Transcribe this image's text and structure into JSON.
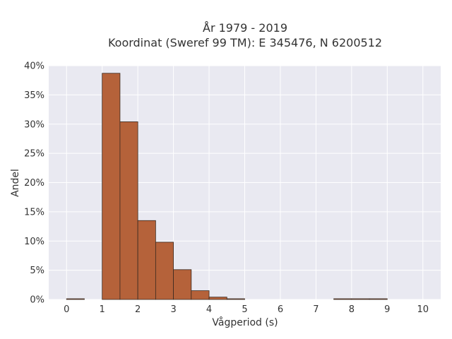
{
  "chart_data": {
    "type": "bar",
    "title_line1": "År 1979 - 2019",
    "title_line2": "Koordinat (Sweref 99 TM): E 345476, N 6200512",
    "xlabel": "Vågperiod (s)",
    "ylabel": "Andel",
    "xlim": [
      -0.5,
      10.5
    ],
    "ylim": [
      0,
      0.4
    ],
    "xticks": [
      0,
      1,
      2,
      3,
      4,
      5,
      6,
      7,
      8,
      9,
      10
    ],
    "yticks": [
      0,
      0.05,
      0.1,
      0.15,
      0.2,
      0.25,
      0.3,
      0.35,
      0.4
    ],
    "ytick_labels": [
      "0%",
      "5%",
      "10%",
      "15%",
      "20%",
      "25%",
      "30%",
      "35%",
      "40%"
    ],
    "bin_width": 0.5,
    "bins": [
      {
        "start": 0.0,
        "value": 0.001
      },
      {
        "start": 0.5,
        "value": 0.0
      },
      {
        "start": 1.0,
        "value": 0.387
      },
      {
        "start": 1.5,
        "value": 0.304
      },
      {
        "start": 2.0,
        "value": 0.135
      },
      {
        "start": 2.5,
        "value": 0.098
      },
      {
        "start": 3.0,
        "value": 0.051
      },
      {
        "start": 3.5,
        "value": 0.015
      },
      {
        "start": 4.0,
        "value": 0.004
      },
      {
        "start": 4.5,
        "value": 0.0005
      },
      {
        "start": 5.0,
        "value": 0.0
      },
      {
        "start": 5.5,
        "value": 0.0
      },
      {
        "start": 6.0,
        "value": 0.0
      },
      {
        "start": 6.5,
        "value": 0.0
      },
      {
        "start": 7.0,
        "value": 0.0
      },
      {
        "start": 7.5,
        "value": 0.0005
      },
      {
        "start": 8.0,
        "value": 0.0005
      },
      {
        "start": 8.5,
        "value": 0.0005
      },
      {
        "start": 9.0,
        "value": 0.0
      },
      {
        "start": 9.5,
        "value": 0.0
      }
    ],
    "grid": true,
    "colors": {
      "bar_fill": "#b5623a",
      "bar_edge": "#3a2a20",
      "plot_bg": "#e9e9f1",
      "grid": "#ffffff"
    }
  }
}
